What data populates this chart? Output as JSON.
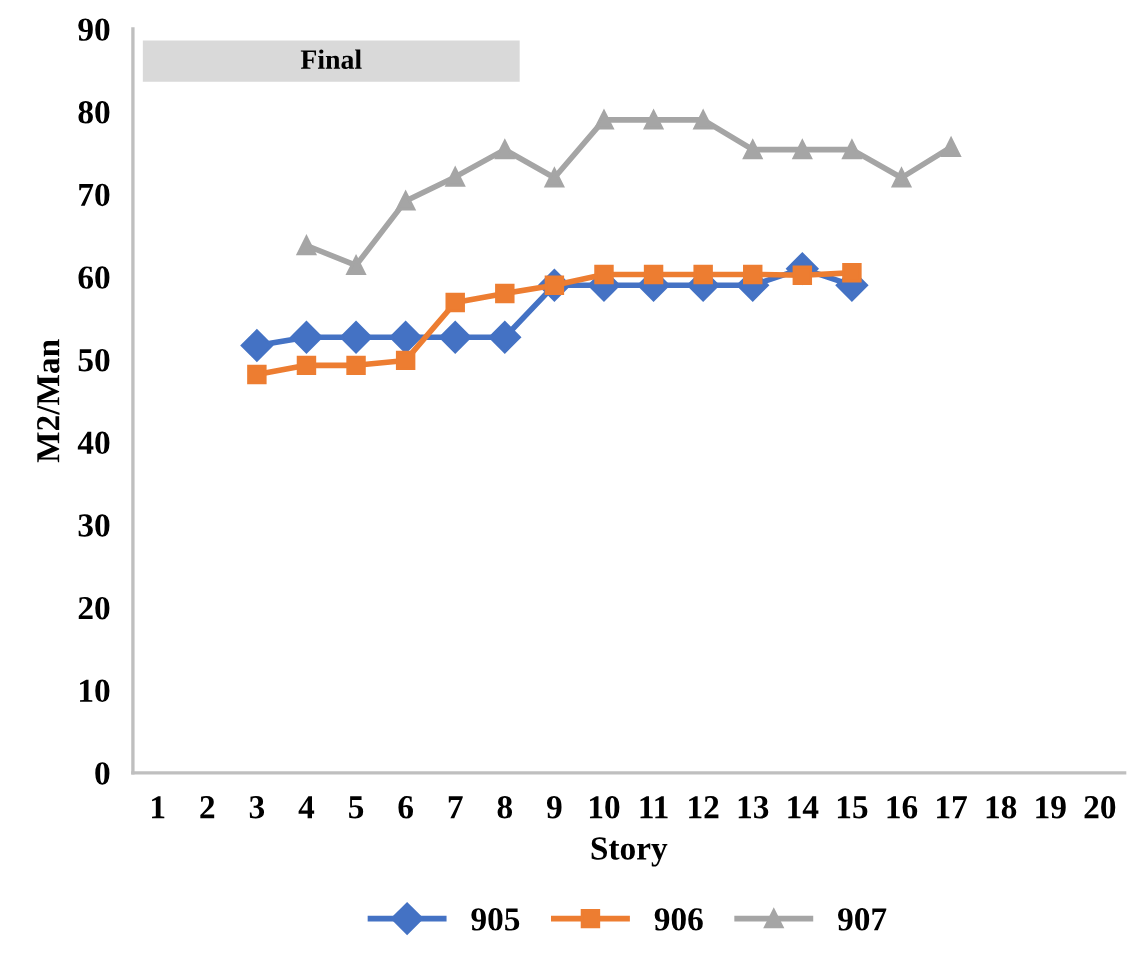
{
  "chart_data": {
    "type": "line",
    "xlabel": "Story",
    "ylabel": "M2/Man",
    "annotations": [
      "Final"
    ],
    "categories": [
      "1",
      "2",
      "3",
      "4",
      "5",
      "6",
      "7",
      "8",
      "9",
      "10",
      "11",
      "12",
      "13",
      "14",
      "15",
      "16",
      "17",
      "18",
      "19",
      "20"
    ],
    "series": [
      {
        "name": "905",
        "color": "#4472c4",
        "marker": "diamond",
        "values": [
          null,
          null,
          51.7,
          52.7,
          52.7,
          52.7,
          52.7,
          52.7,
          59,
          59,
          59,
          59,
          59,
          61,
          59,
          null,
          null,
          null,
          null,
          null
        ]
      },
      {
        "name": "906",
        "color": "#ed7d31",
        "marker": "square",
        "values": [
          null,
          null,
          48.2,
          49.3,
          49.3,
          49.9,
          56.9,
          58,
          59,
          60.3,
          60.3,
          60.3,
          60.3,
          60.2,
          60.5,
          null,
          null,
          null,
          null,
          null
        ]
      },
      {
        "name": "907",
        "color": "#a5a5a5",
        "marker": "triangle",
        "values": [
          null,
          null,
          null,
          63.8,
          61.4,
          69.2,
          72.1,
          75.4,
          72,
          79,
          79,
          79,
          75.4,
          75.4,
          75.4,
          72,
          75.7,
          null,
          null,
          null
        ]
      }
    ],
    "ylim": [
      0,
      90
    ],
    "yticks": [
      0,
      10,
      20,
      30,
      40,
      50,
      60,
      70,
      80,
      90
    ],
    "grid": false,
    "legend": "bottom",
    "line_style": "solid"
  }
}
